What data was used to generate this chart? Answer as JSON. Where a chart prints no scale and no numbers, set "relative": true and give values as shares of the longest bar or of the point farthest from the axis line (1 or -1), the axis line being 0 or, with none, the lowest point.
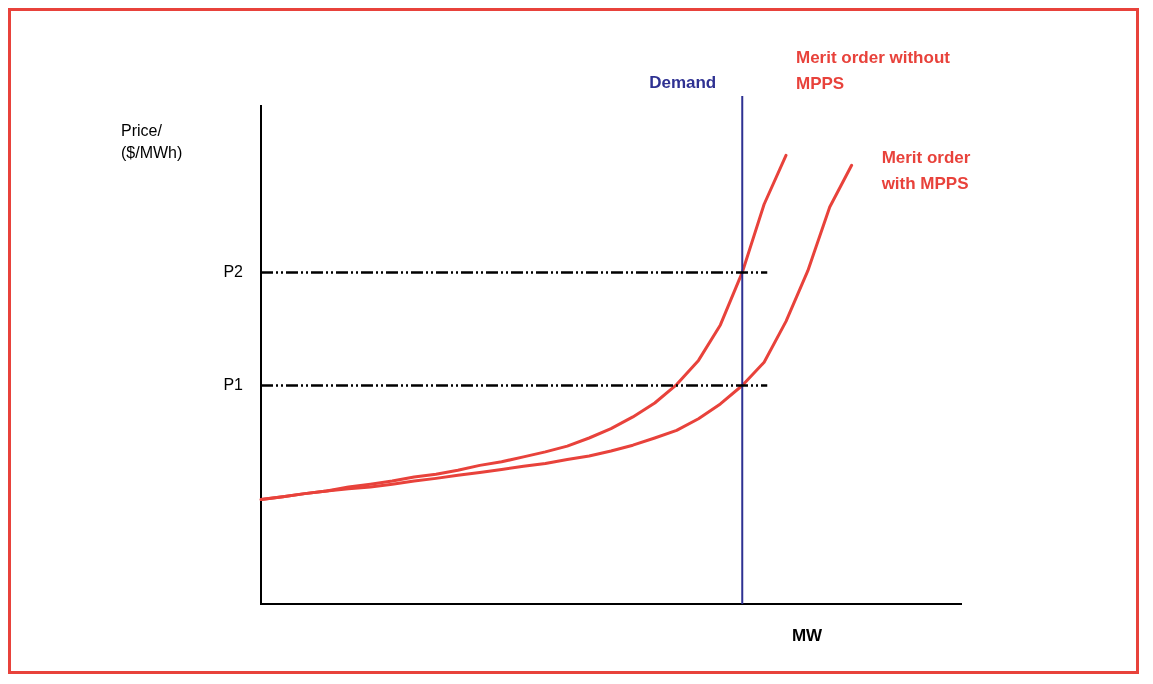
{
  "chart_data": {
    "type": "line",
    "relative": true,
    "xlabel": "MW",
    "ylabel": "Price/ ($/MWh)",
    "legend": false,
    "grid": false,
    "marker": "none",
    "categories": [
      null,
      null,
      null,
      null,
      null,
      null,
      null,
      null,
      null,
      null,
      null,
      null,
      null,
      null,
      null,
      null,
      null,
      null,
      null,
      null,
      null,
      null,
      null,
      null,
      null,
      null,
      null,
      null,
      null,
      null,
      null,
      null,
      null
    ],
    "series": [
      {
        "name": "Merit order without MPPS",
        "color": "#e8423b",
        "values": [
          0.233,
          0.239,
          0.246,
          0.252,
          0.261,
          0.267,
          0.274,
          0.283,
          0.289,
          0.298,
          0.309,
          0.317,
          0.328,
          0.339,
          0.352,
          0.37,
          0.391,
          0.417,
          0.448,
          0.489,
          0.543,
          0.622,
          0.739,
          0.891,
          1,
          null,
          null,
          null,
          null,
          null,
          null,
          null,
          null
        ]
      },
      {
        "name": "Merit order with MPPS",
        "color": "#e8423b",
        "values": [
          0.233,
          0.239,
          0.246,
          0.252,
          0.257,
          0.261,
          0.267,
          0.274,
          0.28,
          0.287,
          0.293,
          0.3,
          0.307,
          0.313,
          0.322,
          0.33,
          0.341,
          0.354,
          0.37,
          0.387,
          0.413,
          0.446,
          0.487,
          0.539,
          0.63,
          0.743,
          0.885,
          0.978,
          null,
          null,
          null,
          null,
          null
        ]
      }
    ],
    "ref_lines": [
      {
        "axis": "y",
        "value": 0.739,
        "label": "P2",
        "color": "#000000",
        "line_style": "dashed"
      },
      {
        "axis": "y",
        "value": 0.487,
        "label": "P1",
        "color": "#000000",
        "line_style": "dashed"
      }
    ],
    "annotations": [
      "Demand"
    ]
  }
}
